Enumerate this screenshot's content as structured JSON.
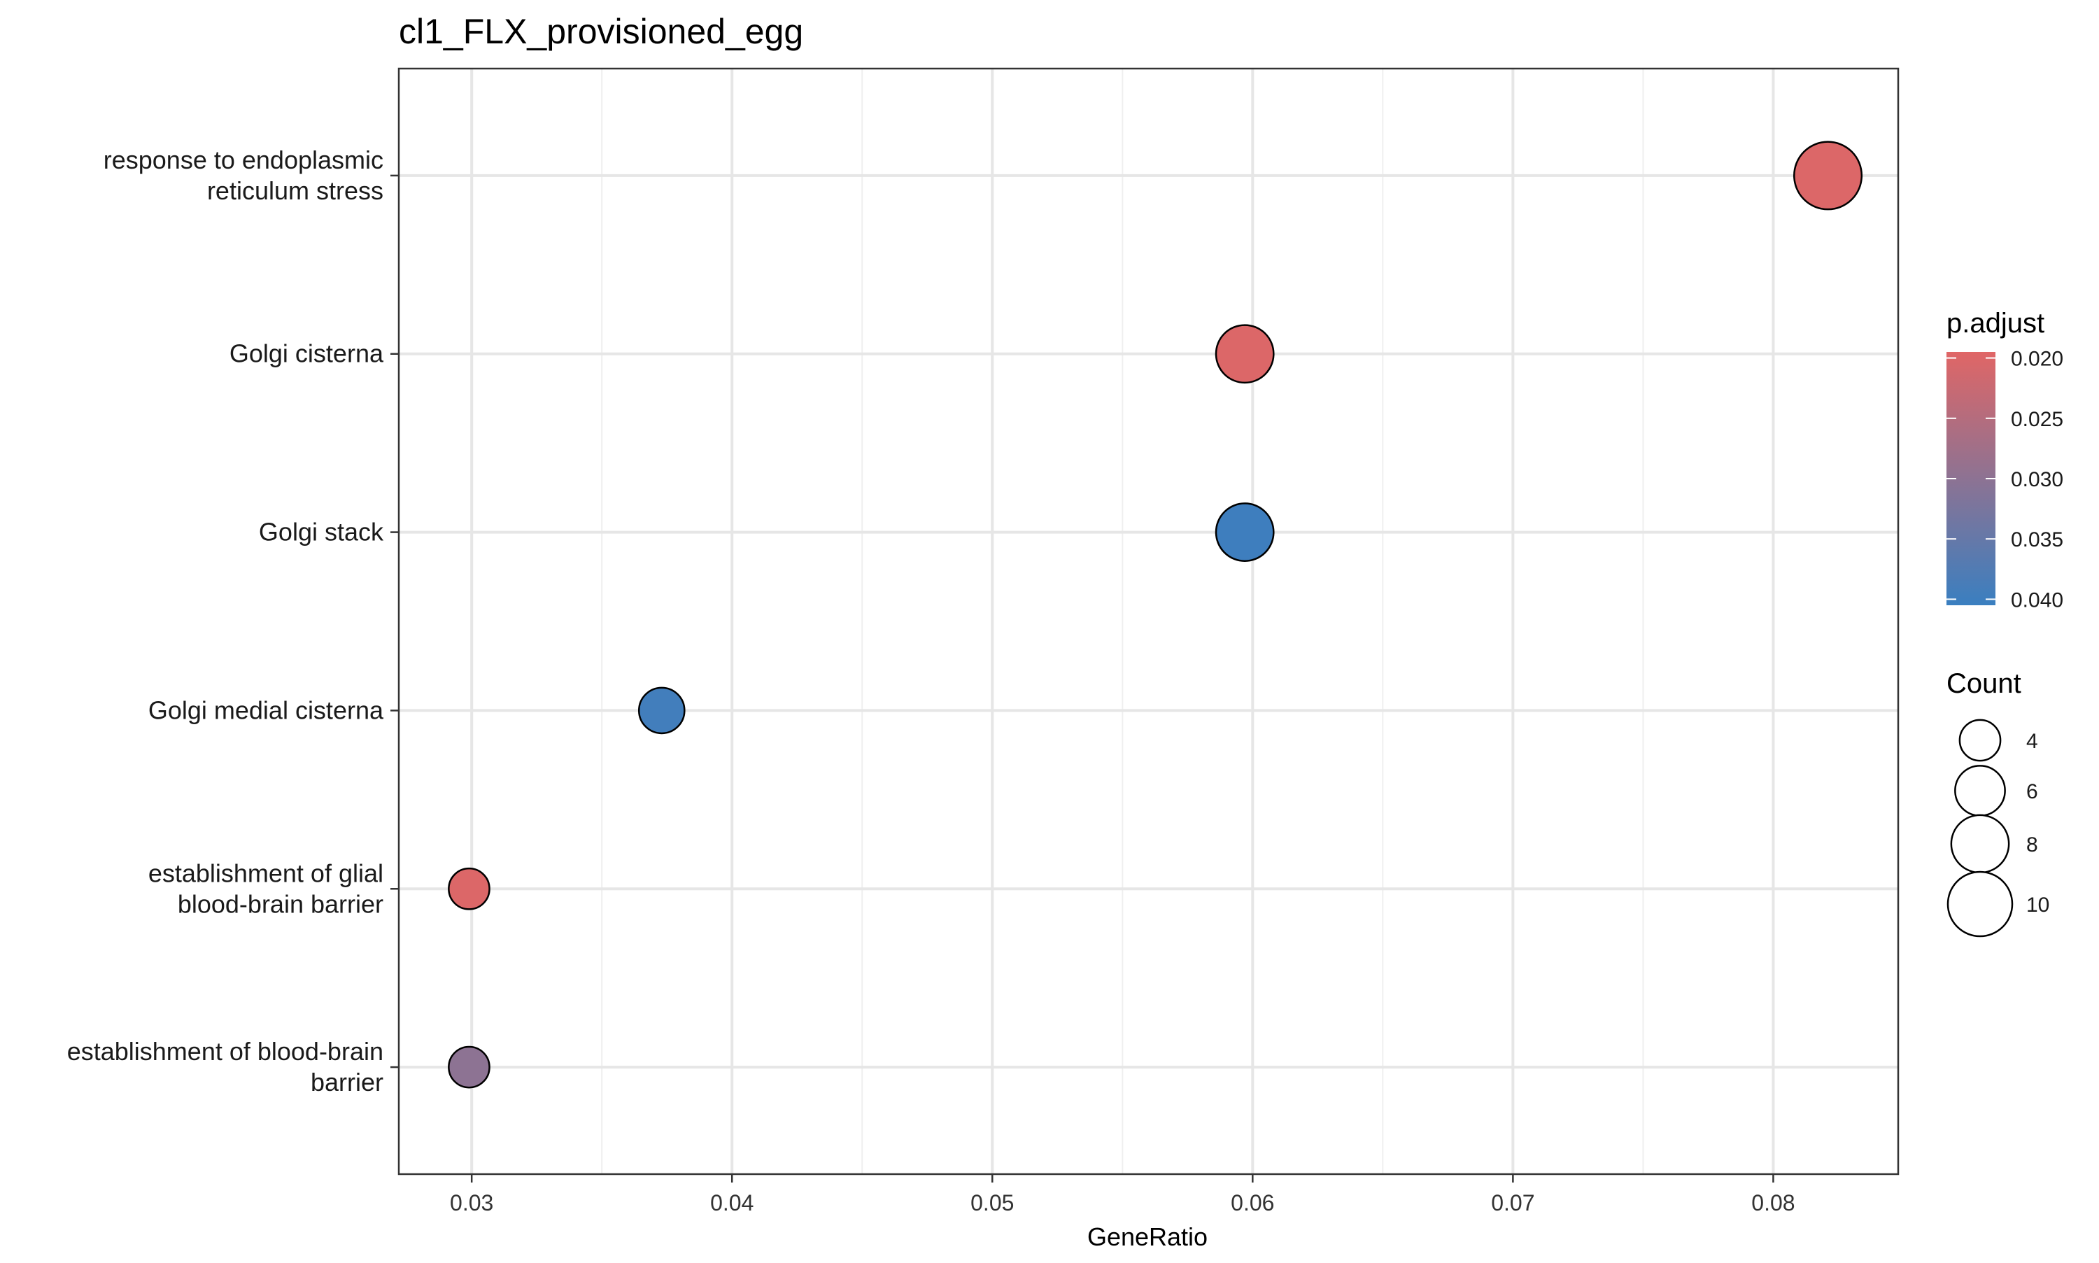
{
  "chart_data": {
    "type": "scatter",
    "title": "cl1_FLX_provisioned_egg",
    "xlabel": "GeneRatio",
    "ylabel": "",
    "xlim": [
      0.0272,
      0.0848
    ],
    "x_ticks": [
      0.03,
      0.04,
      0.05,
      0.06,
      0.07,
      0.08
    ],
    "x_tick_labels": [
      "0.03",
      "0.04",
      "0.05",
      "0.06",
      "0.07",
      "0.08"
    ],
    "grid": true,
    "legend_position": "right",
    "categories": [
      {
        "lines": [
          "response to endoplasmic",
          "reticulum stress"
        ]
      },
      {
        "lines": [
          "Golgi cisterna"
        ]
      },
      {
        "lines": [
          "Golgi stack"
        ]
      },
      {
        "lines": [
          "Golgi medial cisterna"
        ]
      },
      {
        "lines": [
          "establishment of glial",
          "blood-brain barrier"
        ]
      },
      {
        "lines": [
          "establishment of blood-brain",
          "barrier"
        ]
      }
    ],
    "points": [
      {
        "x": 0.0821,
        "count": 11,
        "p_adjust": 0.02
      },
      {
        "x": 0.0597,
        "count": 8,
        "p_adjust": 0.02
      },
      {
        "x": 0.0597,
        "count": 8,
        "p_adjust": 0.04
      },
      {
        "x": 0.0373,
        "count": 5,
        "p_adjust": 0.0395
      },
      {
        "x": 0.0299,
        "count": 4,
        "p_adjust": 0.02
      },
      {
        "x": 0.0299,
        "count": 4,
        "p_adjust": 0.03
      }
    ],
    "color_legend": {
      "title": "p.adjust",
      "low_color": "#e06666",
      "high_color": "#3a7fc0",
      "min": 0.0195,
      "max": 0.0405,
      "ticks": [
        0.02,
        0.025,
        0.03,
        0.035,
        0.04
      ],
      "tick_labels": [
        "0.020",
        "0.025",
        "0.030",
        "0.035",
        "0.040"
      ]
    },
    "size_legend": {
      "title": "Count",
      "values": [
        4,
        6,
        8,
        10
      ],
      "labels": [
        "4",
        "6",
        "8",
        "10"
      ]
    }
  }
}
